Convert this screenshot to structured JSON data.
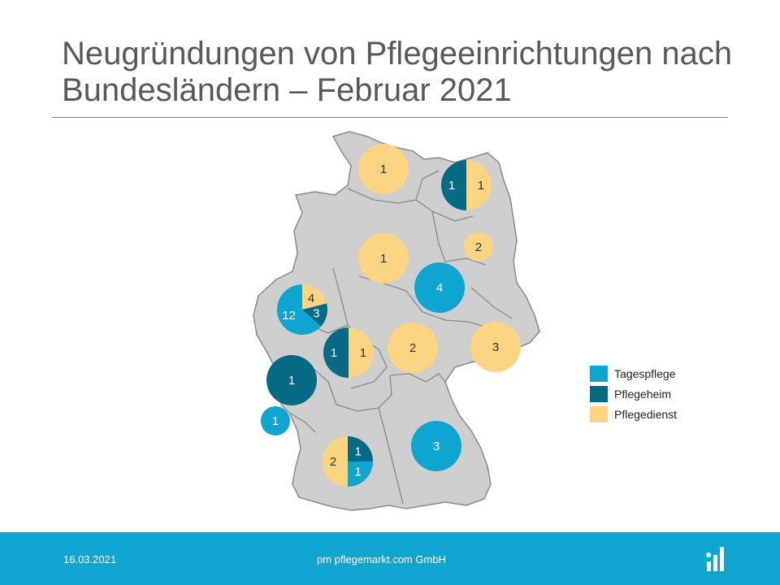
{
  "title": "Neugründungen von Pflegeeinrichtungen nach Bundesländern – Februar 2021",
  "colors": {
    "Tagespflege": "#0ea5d0",
    "Pflegeheim": "#056a86",
    "Pflegedienst": "#fdd481",
    "map_fill": "#cfcfcf",
    "map_border": "#8a8a8a"
  },
  "legend": [
    {
      "key": "Tagespflege",
      "label": "Tagespflege"
    },
    {
      "key": "Pflegeheim",
      "label": "Pflegeheim"
    },
    {
      "key": "Pflegedienst",
      "label": "Pflegedienst"
    }
  ],
  "regions": [
    {
      "name": "Schleswig-Holstein",
      "values": {
        "Pflegedienst": 1
      }
    },
    {
      "name": "Mecklenburg-Vorpommern",
      "values": {
        "Pflegeheim": 1,
        "Pflegedienst": 1
      }
    },
    {
      "name": "Brandenburg",
      "values": {
        "Pflegedienst": 2
      }
    },
    {
      "name": "Niedersachsen",
      "values": {
        "Pflegedienst": 1
      }
    },
    {
      "name": "Sachsen-Anhalt",
      "values": {
        "Tagespflege": 4
      }
    },
    {
      "name": "Nordrhein-Westfalen",
      "values": {
        "Tagespflege": 12,
        "Pflegeheim": 3,
        "Pflegedienst": 4
      }
    },
    {
      "name": "Hessen",
      "values": {
        "Pflegeheim": 1,
        "Pflegedienst": 1
      }
    },
    {
      "name": "Thüringen",
      "values": {
        "Pflegedienst": 2
      }
    },
    {
      "name": "Sachsen",
      "values": {
        "Pflegedienst": 3
      }
    },
    {
      "name": "Rheinland-Pfalz",
      "values": {
        "Pflegeheim": 1
      }
    },
    {
      "name": "Saarland",
      "values": {
        "Tagespflege": 1
      }
    },
    {
      "name": "Baden-Württemberg",
      "values": {
        "Tagespflege": 1,
        "Pflegeheim": 1,
        "Pflegedienst": 2
      }
    },
    {
      "name": "Bayern",
      "values": {
        "Tagespflege": 3
      }
    }
  ],
  "footer": {
    "date": "16.03.2021",
    "company": "pm pflegemarkt.com GmbH"
  }
}
